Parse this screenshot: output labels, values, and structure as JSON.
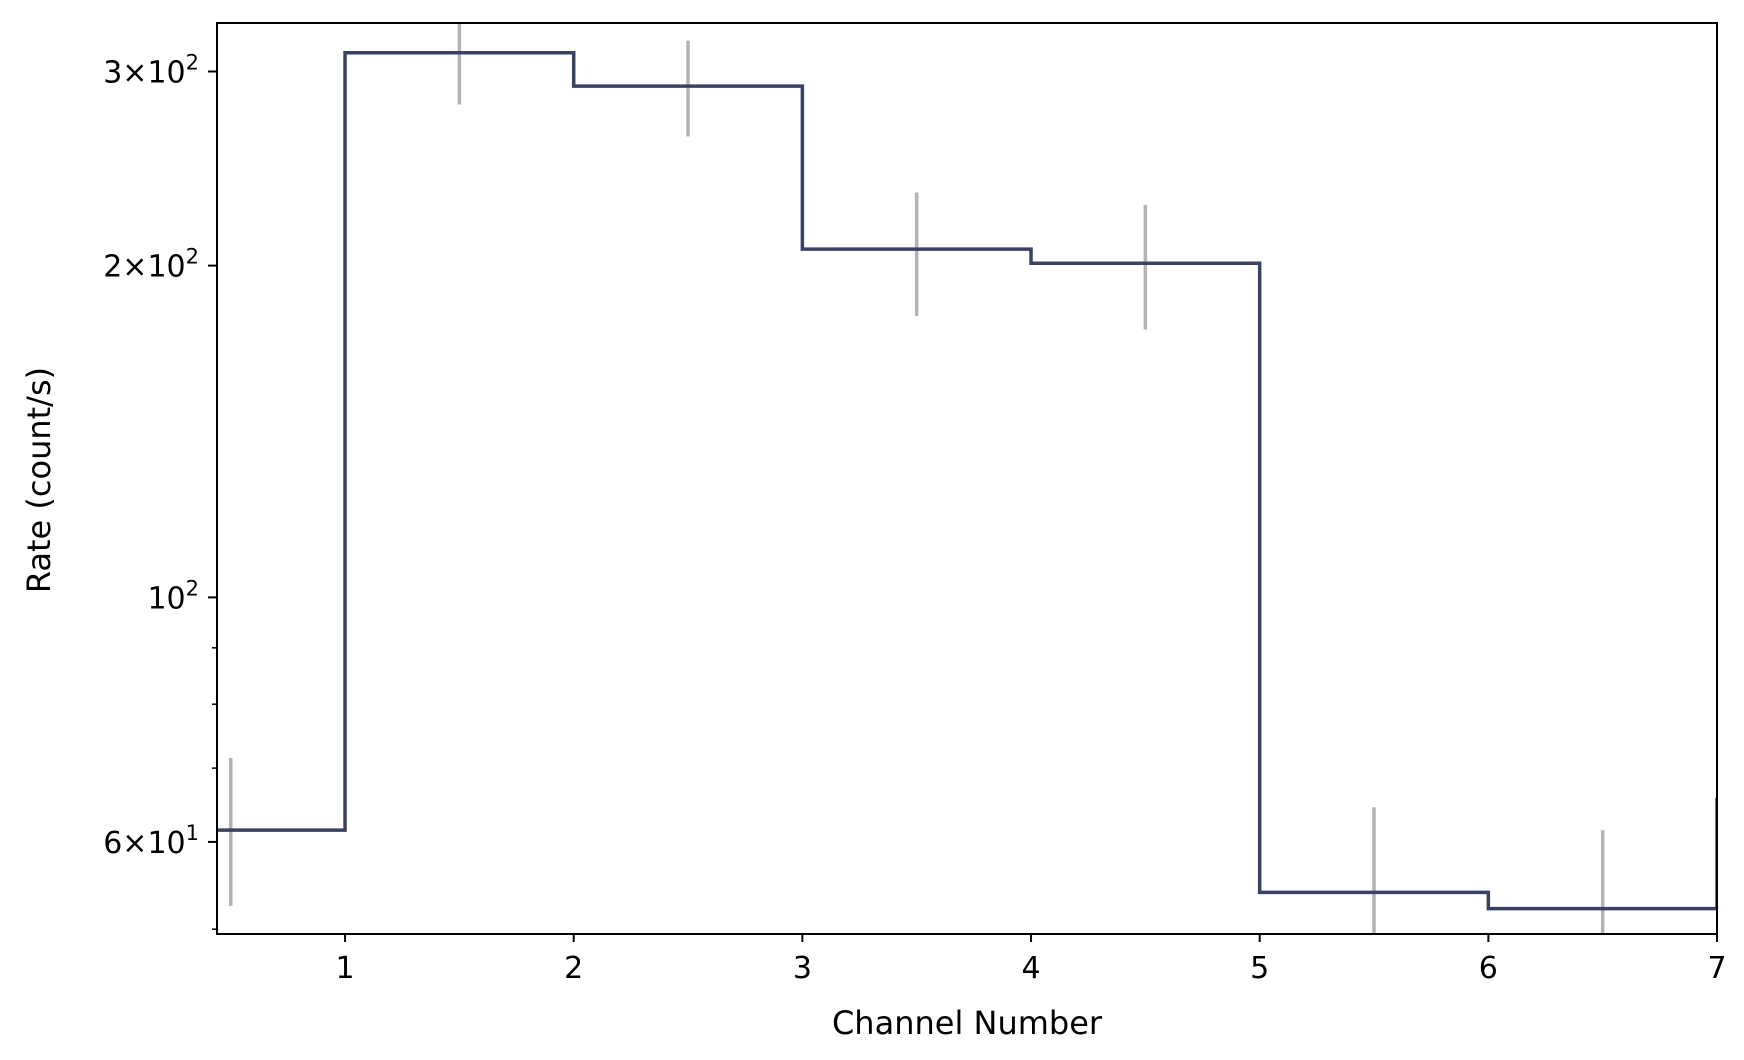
{
  "chart_data": {
    "type": "line",
    "step": true,
    "xlabel": "Channel Number",
    "ylabel": "Rate (count/s)",
    "xlim": [
      0.44,
      7
    ],
    "ylim": [
      49.5,
      332
    ],
    "yscale": "log",
    "grid": false,
    "colors": {
      "line": "#3a4262",
      "errorbar": "#b3b3b3",
      "axes": "#000000"
    },
    "x_ticks": [
      1,
      2,
      3,
      4,
      5,
      6,
      7
    ],
    "x_tick_labels": [
      "1",
      "2",
      "3",
      "4",
      "5",
      "6",
      "7"
    ],
    "y_major_ticks": [
      {
        "value": 60,
        "mant": "6",
        "exp": "1"
      },
      {
        "value": 100,
        "mant": "",
        "exp": "2"
      },
      {
        "value": 200,
        "mant": "2",
        "exp": "2"
      },
      {
        "value": 300,
        "mant": "3",
        "exp": "2"
      }
    ],
    "y_minor_ticks": [
      50,
      70,
      80,
      90
    ],
    "bins": [
      {
        "x_lo": 0,
        "x_hi": 1,
        "x": 0.5,
        "rate": 61.5,
        "err_lo": 52.5,
        "err_hi": 71.5
      },
      {
        "x_lo": 1,
        "x_hi": 2,
        "x": 1.5,
        "rate": 312,
        "err_lo": 280,
        "err_hi": 345
      },
      {
        "x_lo": 2,
        "x_hi": 3,
        "x": 2.5,
        "rate": 291,
        "err_lo": 262,
        "err_hi": 320
      },
      {
        "x_lo": 3,
        "x_hi": 4,
        "x": 3.5,
        "rate": 207,
        "err_lo": 180,
        "err_hi": 233
      },
      {
        "x_lo": 4,
        "x_hi": 5,
        "x": 4.5,
        "rate": 201,
        "err_lo": 175,
        "err_hi": 227
      },
      {
        "x_lo": 5,
        "x_hi": 6,
        "x": 5.5,
        "rate": 54,
        "err_lo": 47,
        "err_hi": 64.5
      },
      {
        "x_lo": 6,
        "x_hi": 7,
        "x": 6.5,
        "rate": 52.2,
        "err_lo": 46,
        "err_hi": 61.5
      }
    ]
  }
}
